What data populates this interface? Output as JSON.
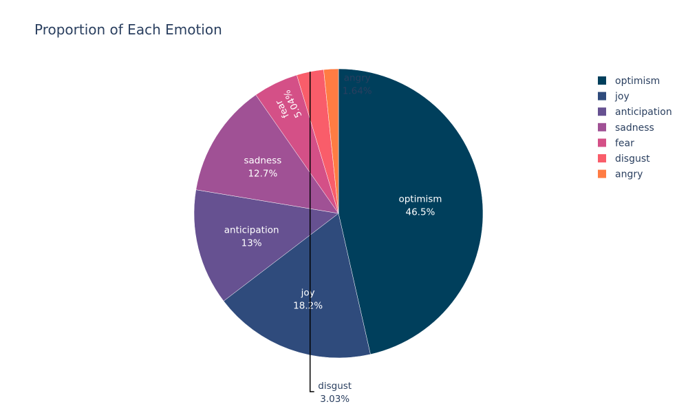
{
  "chart_data": {
    "type": "pie",
    "title": "Proportion of Each Emotion",
    "legend_position": "top-right",
    "direction": "clockwise",
    "labels": [
      "optimism",
      "joy",
      "anticipation",
      "sadness",
      "fear",
      "disgust",
      "angry"
    ],
    "values": [
      46.5,
      18.2,
      13.0,
      12.7,
      5.04,
      3.03,
      1.64
    ],
    "value_labels": [
      "46.5%",
      "18.2%",
      "13%",
      "12.7%",
      "5.04%",
      "3.03%",
      "1.64%"
    ],
    "colors": [
      "#003f5c",
      "#2f4b7c",
      "#665191",
      "#a05195",
      "#d45087",
      "#f95d6a",
      "#ff7c43"
    ]
  }
}
